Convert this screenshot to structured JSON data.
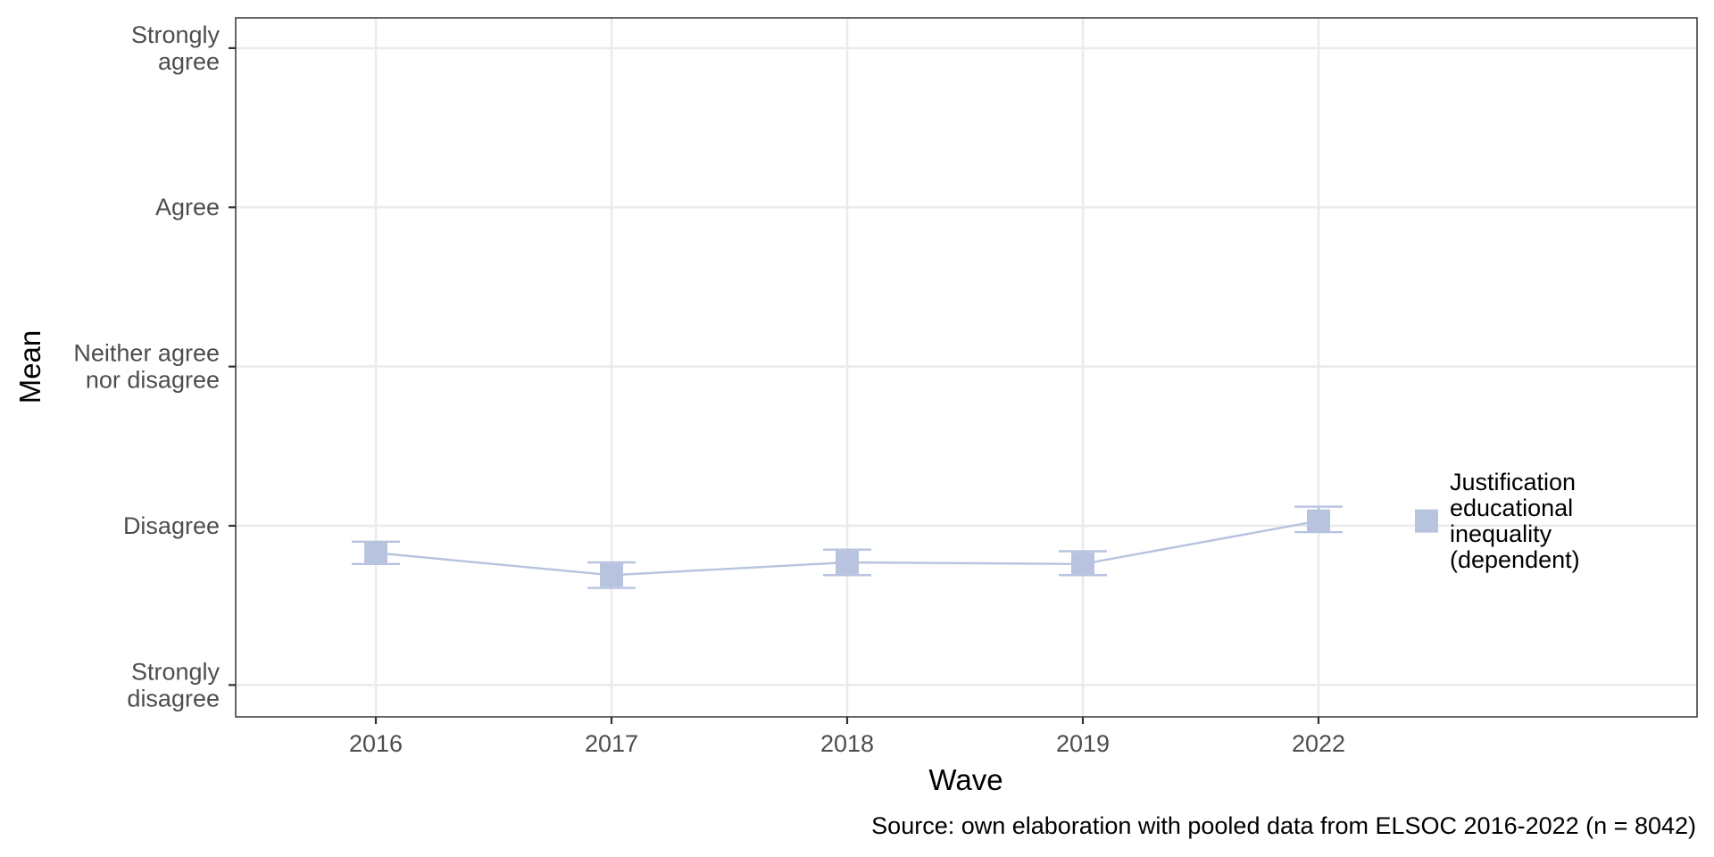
{
  "chart_data": {
    "type": "line",
    "x_categories": [
      "2016",
      "2017",
      "2018",
      "2019",
      "2022"
    ],
    "y_levels": [
      {
        "value": 1,
        "lines": [
          "Strongly",
          "disagree"
        ]
      },
      {
        "value": 2,
        "lines": [
          "Disagree"
        ]
      },
      {
        "value": 3,
        "lines": [
          "Neither agree",
          "nor disagree"
        ]
      },
      {
        "value": 4,
        "lines": [
          "Agree"
        ]
      },
      {
        "value": 5,
        "lines": [
          "Strongly",
          "agree"
        ]
      }
    ],
    "ylim": [
      0.8,
      5.19
    ],
    "xlabel": "Wave",
    "ylabel": "Mean",
    "series": [
      {
        "name": "Justification educational inequality (dependent)",
        "name_lines": [
          "Justification",
          "educational",
          "inequality",
          "(dependent)"
        ],
        "color": "#b7c3df",
        "values": [
          1.83,
          1.69,
          1.77,
          1.76,
          2.03
        ],
        "ci_low": [
          1.76,
          1.61,
          1.69,
          1.69,
          1.96
        ],
        "ci_high": [
          1.9,
          1.77,
          1.85,
          1.84,
          2.12
        ]
      }
    ],
    "grid": true,
    "legend_position": "right",
    "caption": "Source: own elaboration with pooled data from ELSOC 2016-2022 (n = 8042)"
  }
}
